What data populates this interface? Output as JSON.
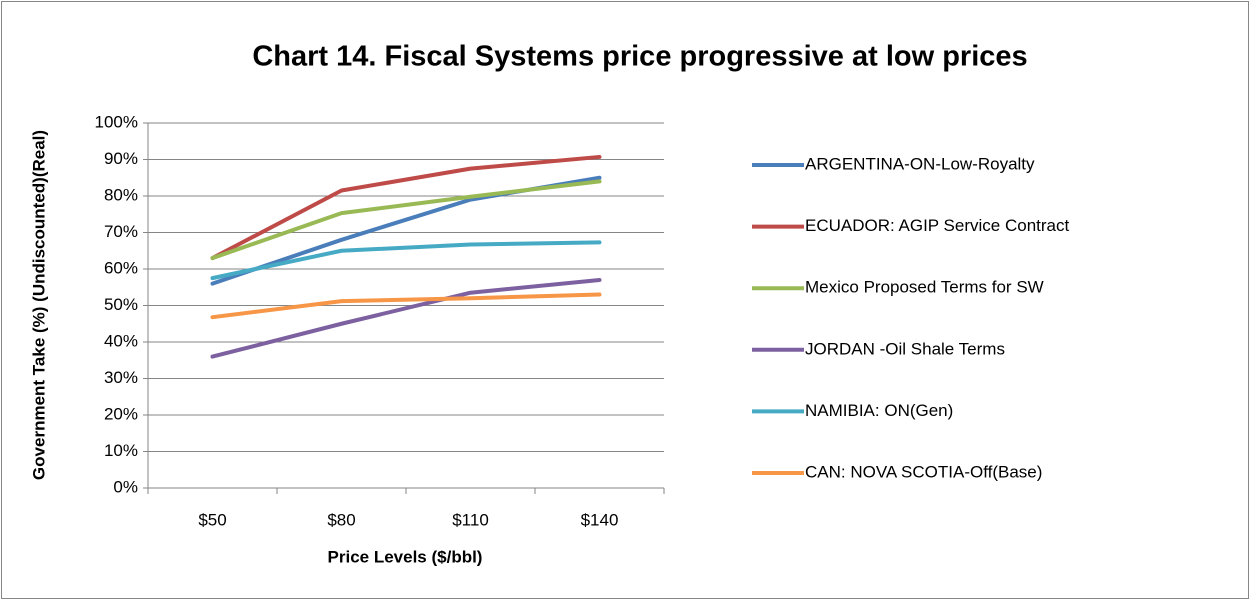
{
  "chart_data": {
    "type": "line",
    "title": "Chart 14. Fiscal Systems price progressive at low prices",
    "x_label": "Price Levels ($/bbl)",
    "y_label": "Government Take (%) (Undiscounted)(Real)",
    "categories": [
      "$50",
      "$80",
      "$110",
      "$140"
    ],
    "series": [
      {
        "name": "ARGENTINA-ON-Low-Royalty",
        "color": "#4a7ebb",
        "values": [
          56,
          68,
          79,
          85
        ]
      },
      {
        "name": "ECUADOR: AGIP Service Contract",
        "color": "#be4b48",
        "values": [
          63,
          81.5,
          87.5,
          90.7
        ]
      },
      {
        "name": "Mexico Proposed Terms for SW",
        "color": "#98b954",
        "values": [
          63,
          75.3,
          79.8,
          84
        ]
      },
      {
        "name": "JORDAN -Oil Shale Terms",
        "color": "#7d60a0",
        "values": [
          36,
          45,
          53.5,
          57
        ]
      },
      {
        "name": "NAMIBIA: ON(Gen)",
        "color": "#46aac5",
        "values": [
          57.5,
          65,
          66.7,
          67.3
        ]
      },
      {
        "name": "CAN: NOVA SCOTIA-Off(Base)",
        "color": "#f79646",
        "values": [
          46.8,
          51.2,
          52,
          53
        ]
      }
    ],
    "ylim": [
      0,
      100
    ],
    "yticks": [
      {
        "value": 0,
        "label": "0%"
      },
      {
        "value": 10,
        "label": "10%"
      },
      {
        "value": 20,
        "label": "20%"
      },
      {
        "value": 30,
        "label": "30%"
      },
      {
        "value": 40,
        "label": "40%"
      },
      {
        "value": 50,
        "label": "50%"
      },
      {
        "value": 60,
        "label": "60%"
      },
      {
        "value": 70,
        "label": "70%"
      },
      {
        "value": 80,
        "label": "80%"
      },
      {
        "value": 90,
        "label": "90%"
      },
      {
        "value": 100,
        "label": "100%"
      }
    ],
    "grid": true,
    "legend": "right"
  }
}
